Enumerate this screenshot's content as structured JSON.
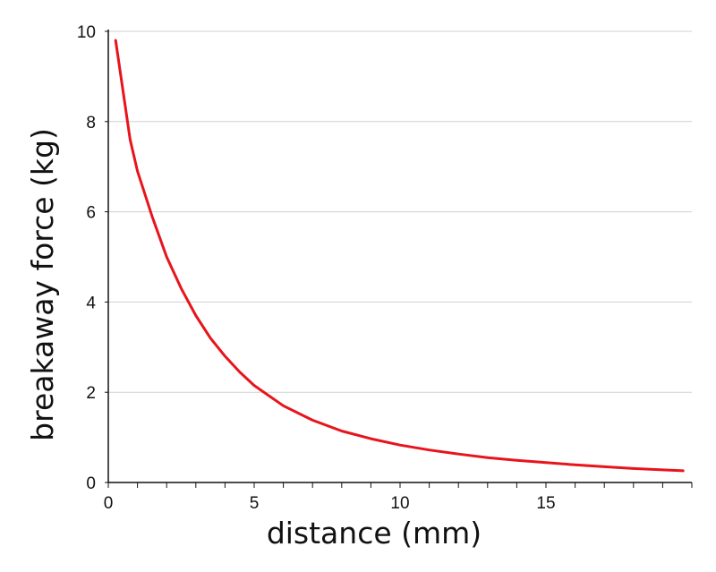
{
  "chart_data": {
    "type": "line",
    "title": "",
    "xlabel": "distance (mm)",
    "ylabel": "breakaway force (kg)",
    "xlim": [
      0,
      20
    ],
    "ylim": [
      0,
      10
    ],
    "x_ticks": [
      0,
      5,
      10,
      15
    ],
    "x_tick_labels": [
      "0",
      "5",
      "10",
      "15"
    ],
    "x_minor_step": 1,
    "y_ticks": [
      0,
      2,
      4,
      6,
      8,
      10
    ],
    "y_tick_labels": [
      "0",
      "2",
      "4",
      "6",
      "8",
      "10"
    ],
    "grid": "horizontal",
    "legend": "none",
    "series": [
      {
        "color": "#e8141c",
        "x": [
          0.25,
          0.5,
          0.75,
          1.0,
          1.5,
          2.0,
          2.5,
          3.0,
          3.5,
          4.0,
          4.5,
          5.0,
          6.0,
          7.0,
          8.0,
          9.0,
          10.0,
          11.0,
          12.0,
          13.0,
          14.0,
          15.0,
          16.0,
          17.0,
          18.0,
          19.0,
          19.7
        ],
        "y": [
          9.8,
          8.7,
          7.6,
          6.9,
          5.9,
          5.0,
          4.3,
          3.7,
          3.2,
          2.8,
          2.45,
          2.15,
          1.7,
          1.38,
          1.14,
          0.97,
          0.83,
          0.72,
          0.63,
          0.55,
          0.49,
          0.44,
          0.39,
          0.35,
          0.31,
          0.28,
          0.26
        ]
      }
    ]
  }
}
